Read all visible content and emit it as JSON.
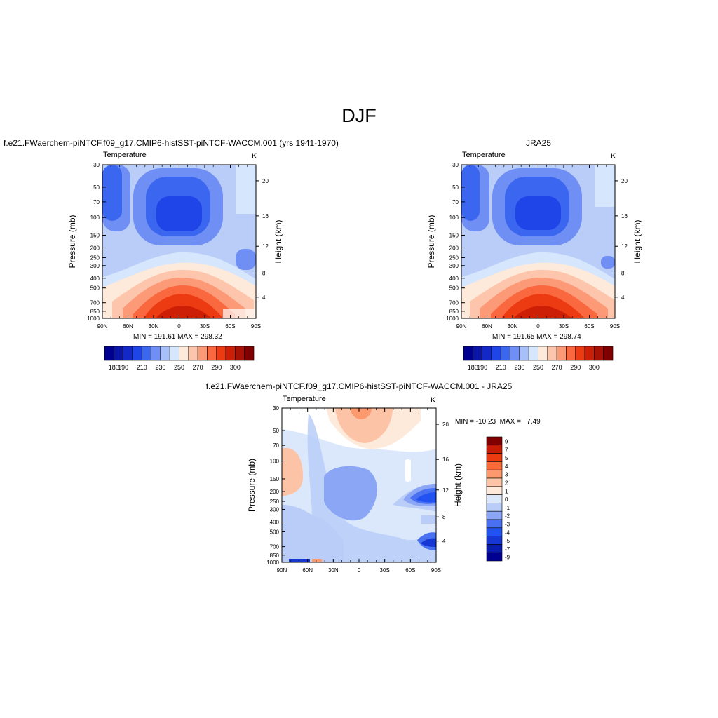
{
  "figure": {
    "title": "DJF"
  },
  "colors": {
    "temp_scale": [
      "#000090",
      "#0a14a8",
      "#1428c8",
      "#1f45e8",
      "#3b66ef",
      "#6f8ff4",
      "#a8c0f8",
      "#d6e6fc",
      "#feeadb",
      "#fdc6ac",
      "#fc9a78",
      "#f9683e",
      "#ec3a12",
      "#cc1f06",
      "#a81105",
      "#800000"
    ],
    "diff_scale": [
      "#000090",
      "#0a1cae",
      "#1637d4",
      "#2352f2",
      "#4870f1",
      "#8aa6f5",
      "#b9cdf8",
      "#dbe8fc",
      "#feeadb",
      "#fdc3a6",
      "#fc996f",
      "#f96a3a",
      "#ec3a11",
      "#c81d05",
      "#800000"
    ]
  },
  "panels": [
    {
      "id": "model",
      "title": "f.e21.FWaerchem-piNTCF.f09_g17.CMIP6-histSST-piNTCF-WACCM.001 (yrs 1941-1970)",
      "left_label": "Temperature",
      "right_label": "K",
      "minmax": "MIN = 191.61  MAX = 298.32",
      "colorbar_ticks": [
        "180",
        "190",
        "210",
        "230",
        "250",
        "270",
        "290",
        "300"
      ]
    },
    {
      "id": "obs",
      "title": "JRA25",
      "left_label": "Temperature",
      "right_label": "K",
      "minmax": "MIN = 191.65  MAX = 298.74",
      "colorbar_ticks": [
        "180",
        "190",
        "210",
        "230",
        "250",
        "270",
        "290",
        "300"
      ]
    },
    {
      "id": "diff",
      "title": "f.e21.FWaerchem-piNTCF.f09_g17.CMIP6-histSST-piNTCF-WACCM.001 - JRA25",
      "left_label": "Temperature",
      "right_label": "K",
      "minmax": "MIN = -10.23  MAX =   7.49",
      "colorbar_ticks": [
        "9",
        "7",
        "5",
        "4",
        "3",
        "2",
        "1",
        "0",
        "-1",
        "-2",
        "-3",
        "-4",
        "-5",
        "-7",
        "-9"
      ]
    }
  ],
  "chart_data": [
    {
      "type": "heatmap",
      "name": "model",
      "xlabel": "",
      "ylabel": "Pressure (mb)",
      "y2label": "Height (km)",
      "x_ticks": [
        "90N",
        "60N",
        "30N",
        "0",
        "30S",
        "60S",
        "90S"
      ],
      "y_ticks": [
        30,
        50,
        70,
        100,
        150,
        200,
        250,
        300,
        400,
        500,
        700,
        850,
        1000
      ],
      "y2_ticks": [
        4,
        8,
        12,
        16,
        20
      ],
      "ylim": [
        30,
        1000
      ],
      "xlim": [
        -90,
        90
      ],
      "min": 191.61,
      "max": 298.32,
      "contour_levels": [
        180,
        190,
        200,
        210,
        220,
        230,
        240,
        250,
        260,
        270,
        280,
        290,
        300
      ]
    },
    {
      "type": "heatmap",
      "name": "obs",
      "xlabel": "",
      "ylabel": "Pressure (mb)",
      "y2label": "Height (km)",
      "x_ticks": [
        "90N",
        "60N",
        "30N",
        "0",
        "30S",
        "60S",
        "90S"
      ],
      "y_ticks": [
        30,
        50,
        70,
        100,
        150,
        200,
        250,
        300,
        400,
        500,
        700,
        850,
        1000
      ],
      "y2_ticks": [
        4,
        8,
        12,
        16,
        20
      ],
      "ylim": [
        30,
        1000
      ],
      "xlim": [
        -90,
        90
      ],
      "min": 191.65,
      "max": 298.74,
      "contour_levels": [
        180,
        190,
        200,
        210,
        220,
        230,
        240,
        250,
        260,
        270,
        280,
        290,
        300
      ]
    },
    {
      "type": "heatmap",
      "name": "diff",
      "xlabel": "",
      "ylabel": "Pressure (mb)",
      "y2label": "Height (km)",
      "x_ticks": [
        "90N",
        "60N",
        "30N",
        "0",
        "30S",
        "60S",
        "90S"
      ],
      "y_ticks": [
        30,
        50,
        70,
        100,
        150,
        200,
        250,
        300,
        400,
        500,
        700,
        850,
        1000
      ],
      "y2_ticks": [
        4,
        8,
        12,
        16,
        20
      ],
      "ylim": [
        30,
        1000
      ],
      "xlim": [
        -90,
        90
      ],
      "min": -10.23,
      "max": 7.49,
      "contour_levels": [
        -9,
        -7,
        -5,
        -4,
        -3,
        -2,
        -1,
        0,
        1,
        2,
        3,
        4,
        5,
        7,
        9
      ]
    }
  ]
}
